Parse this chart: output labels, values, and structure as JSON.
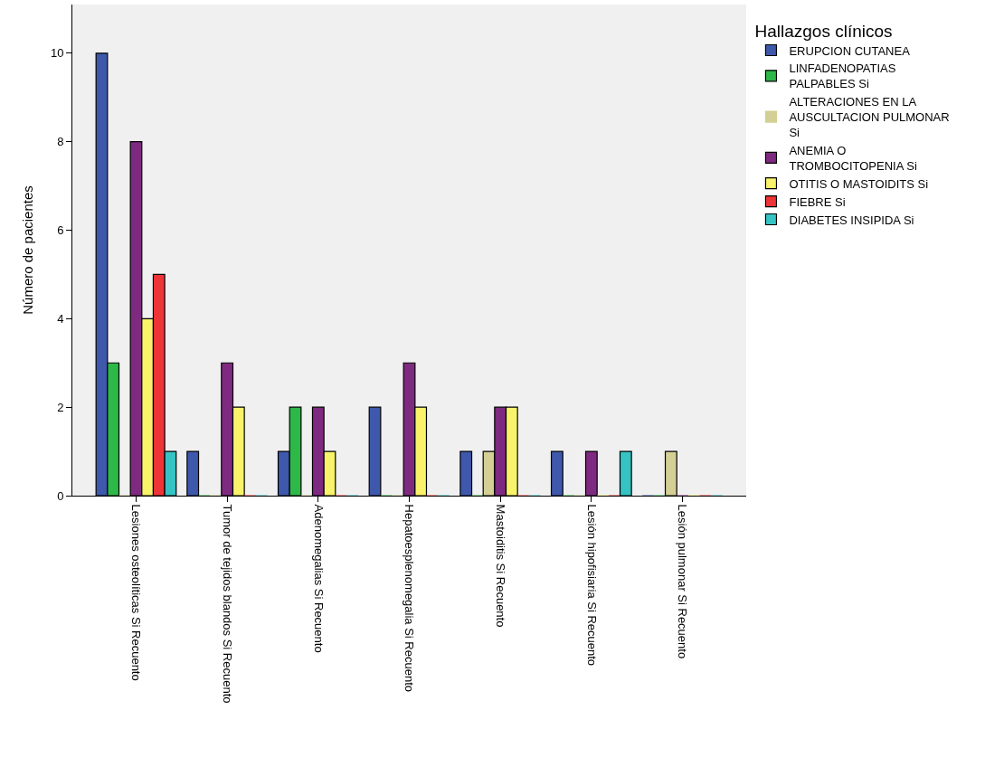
{
  "chart_data": {
    "type": "bar",
    "ylabel": "Número de pacientes",
    "legend_title": "Hallazgos clínicos",
    "legend": "right",
    "categories": [
      "Lesiones osteolíticas Si Recuento",
      "Tumor de tejidos blandos Si Recuento",
      "Adenomegalias Si Recuento",
      "Hepatoesplenomegalia Si Recuento",
      "Mastoiditis Si Recuento",
      "Lesión hipofisiaria Si Recuento",
      "Lesión pulmonar Si Recuento"
    ],
    "series": [
      {
        "name": "ERUPCION CUTANEA",
        "color": "#3e58ac",
        "values": [
          10,
          1,
          1,
          2,
          1,
          1,
          0
        ]
      },
      {
        "name": "LINFADENOPATIAS PALPABLES Si",
        "color": "#2eb848",
        "values": [
          3,
          0,
          2,
          0,
          0,
          0,
          0
        ]
      },
      {
        "name": "ALTERACIONES EN LA AUSCULTACION PULMONAR Si",
        "color": "#d4cf94",
        "values": [
          0,
          0,
          0,
          0,
          1,
          0,
          1
        ]
      },
      {
        "name": "ANEMIA O TROMBOCITOPENIA Si",
        "color": "#7e2a80",
        "values": [
          8,
          3,
          2,
          3,
          2,
          1,
          0
        ]
      },
      {
        "name": "OTITIS O MASTOIDITS Si",
        "color": "#f8f36a",
        "values": [
          4,
          2,
          1,
          2,
          2,
          0,
          0
        ]
      },
      {
        "name": "FIEBRE Si",
        "color": "#ef3438",
        "values": [
          5,
          0,
          0,
          0,
          0,
          0,
          0
        ]
      },
      {
        "name": "DIABETES INSIPIDA Si",
        "color": "#35c3c3",
        "values": [
          1,
          0,
          0,
          0,
          0,
          1,
          0
        ]
      }
    ],
    "ylim": [
      0,
      11.1
    ],
    "yticks": [
      0,
      2,
      4,
      6,
      8,
      10
    ],
    "grid": false
  }
}
